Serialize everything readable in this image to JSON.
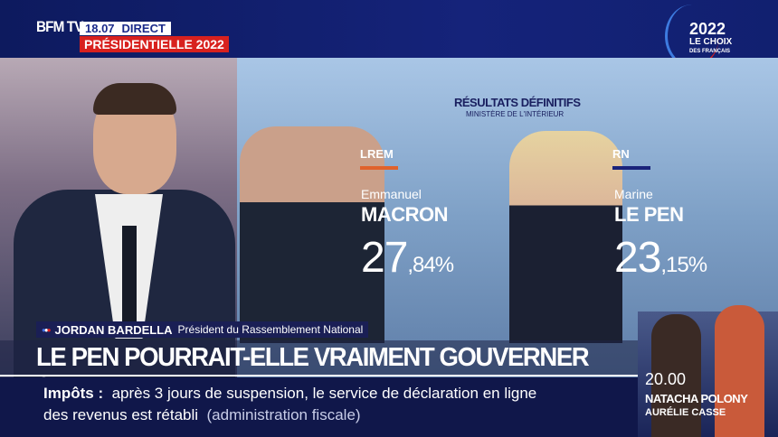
{
  "header": {
    "logo": "BFM TV.",
    "time": "18.07",
    "live": "DIRECT",
    "event": "PRÉSIDENTIELLE 2022",
    "brand_year": "2022",
    "brand_title": "LE CHOIX",
    "brand_sub": "DES FRANÇAIS"
  },
  "results": {
    "title": "RÉSULTATS DÉFINITIFS",
    "source": "MINISTÈRE DE L'INTÉRIEUR",
    "candidates": [
      {
        "party": "LREM",
        "party_color": "#e0622c",
        "first": "Emmanuel",
        "last": "MACRON",
        "pct_int": "27",
        "pct_dec": ",84%"
      },
      {
        "party": "RN",
        "party_color": "#1a237a",
        "first": "Marine",
        "last": "LE PEN",
        "pct_int": "23",
        "pct_dec": ",15%"
      }
    ]
  },
  "lower_third": {
    "name": "JORDAN BARDELLA",
    "role": "Président du Rassemblement National"
  },
  "headline": "LE PEN POURRAIT-ELLE VRAIMENT GOUVERNER ?",
  "ticker": {
    "topic": "Impôts :",
    "line1": "après 3 jours de suspension, le service de déclaration en ligne",
    "line2": "des revenus est rétabli",
    "source": "(administration fiscale)"
  },
  "next_show": {
    "time": "20.00",
    "host": "NATACHA POLONY",
    "cohost": "AURÉLIE CASSE"
  }
}
